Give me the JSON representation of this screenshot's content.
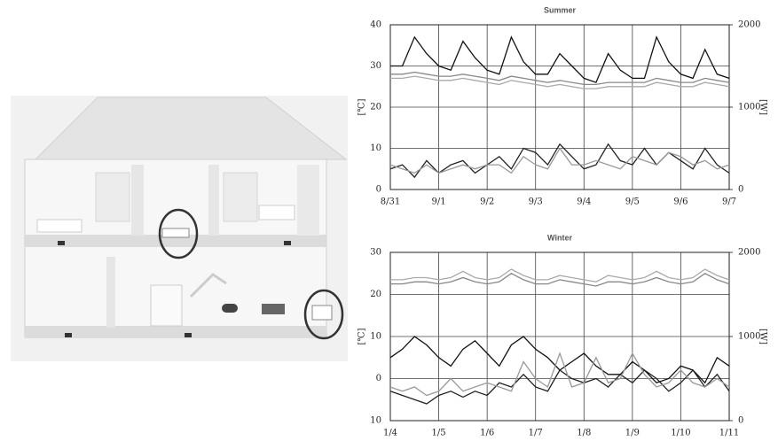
{
  "chart_data": [
    {
      "type": "line",
      "title": "Summer",
      "y_label": "[℃]",
      "y2_label": "[W]",
      "x": [
        0,
        0.25,
        0.5,
        0.75,
        1,
        1.25,
        1.5,
        1.75,
        2,
        2.25,
        2.5,
        2.75,
        3,
        3.25,
        3.5,
        3.75,
        4,
        4.25,
        4.5,
        4.75,
        5,
        5.25,
        5.5,
        5.75,
        6,
        6.25,
        6.5,
        6.75,
        7
      ],
      "xlim": [
        0,
        7
      ],
      "xticks": [
        {
          "value": 0,
          "label": "8/31"
        },
        {
          "value": 1,
          "label": "9/1"
        },
        {
          "value": 2,
          "label": "9/2"
        },
        {
          "value": 3,
          "label": "9/3"
        },
        {
          "value": 4,
          "label": "9/4"
        },
        {
          "value": 5,
          "label": "9/5"
        },
        {
          "value": 6,
          "label": "9/6"
        },
        {
          "value": 7,
          "label": "9/7"
        }
      ],
      "ylim": [
        0,
        40
      ],
      "yticks": [
        0,
        10,
        20,
        30,
        40
      ],
      "y2lim": [
        0,
        2000
      ],
      "y2ticks": [
        0,
        1000,
        2000
      ],
      "grid": true,
      "series": [
        {
          "color": "#111111",
          "values": [
            30,
            30,
            37,
            33,
            30,
            29,
            36,
            32,
            29,
            28,
            37,
            31,
            28,
            28,
            33,
            30,
            27,
            26,
            33,
            29,
            27,
            27,
            37,
            31,
            28,
            27,
            34,
            28,
            27
          ]
        },
        {
          "color": "#888888",
          "values": [
            28,
            28,
            28.5,
            28,
            27.5,
            27.5,
            28,
            27.5,
            27,
            26.5,
            27.5,
            27,
            26.5,
            26,
            26.5,
            26,
            25.5,
            25.5,
            26,
            26,
            26,
            26,
            27,
            26.5,
            26,
            26,
            27,
            26.5,
            26
          ]
        },
        {
          "color": "#aaaaaa",
          "values": [
            27,
            27,
            27.5,
            27,
            26.5,
            26.5,
            27,
            26.5,
            26,
            25.5,
            26.5,
            26,
            25.5,
            25,
            25.5,
            25,
            24.5,
            24.5,
            25,
            25,
            25,
            25,
            26,
            25.5,
            25,
            25,
            26,
            25.5,
            25
          ]
        },
        {
          "color": "#222222",
          "axis": "y2",
          "values": [
            250,
            300,
            150,
            350,
            200,
            300,
            350,
            200,
            300,
            400,
            250,
            500,
            450,
            300,
            550,
            400,
            250,
            300,
            550,
            350,
            300,
            500,
            300,
            450,
            350,
            250,
            500,
            300,
            200
          ]
        },
        {
          "color": "#999999",
          "axis": "y2",
          "values": [
            300,
            250,
            200,
            300,
            200,
            250,
            300,
            250,
            300,
            300,
            200,
            400,
            300,
            250,
            500,
            300,
            300,
            350,
            300,
            250,
            400,
            350,
            300,
            450,
            400,
            300,
            350,
            250,
            300
          ]
        }
      ]
    },
    {
      "type": "line",
      "title": "Winter",
      "y_label": "[℃]",
      "y2_label": "[W]",
      "x": [
        0,
        0.25,
        0.5,
        0.75,
        1,
        1.25,
        1.5,
        1.75,
        2,
        2.25,
        2.5,
        2.75,
        3,
        3.25,
        3.5,
        3.75,
        4,
        4.25,
        4.5,
        4.75,
        5,
        5.25,
        5.5,
        5.75,
        6,
        6.25,
        6.5,
        6.75,
        7
      ],
      "xlim": [
        0,
        7
      ],
      "xticks": [
        {
          "value": 0,
          "label": "1/4"
        },
        {
          "value": 1,
          "label": "1/5"
        },
        {
          "value": 2,
          "label": "1/6"
        },
        {
          "value": 3,
          "label": "1/7"
        },
        {
          "value": 4,
          "label": "1/8"
        },
        {
          "value": 5,
          "label": "1/9"
        },
        {
          "value": 6,
          "label": "1/10"
        },
        {
          "value": 7,
          "label": "1/11"
        }
      ],
      "ylim": [
        -10,
        30
      ],
      "yticks": [
        {
          "value": -10,
          "label": "10"
        },
        0,
        10,
        20,
        30
      ],
      "y2lim": [
        0,
        2000
      ],
      "y2ticks": [
        0,
        1000,
        2000
      ],
      "grid": true,
      "series": [
        {
          "color": "#888888",
          "values": [
            22.5,
            22.5,
            23,
            23,
            22.5,
            23,
            24,
            23,
            22.5,
            23,
            25,
            23.5,
            22.5,
            22.5,
            23.5,
            23,
            22.5,
            22,
            23,
            23,
            22.5,
            23,
            24,
            23,
            22.5,
            23,
            25,
            23.5,
            22.5
          ]
        },
        {
          "color": "#aaaaaa",
          "values": [
            23.5,
            23.5,
            24,
            24,
            23.5,
            24,
            25.5,
            24,
            23.5,
            24,
            26,
            24.5,
            23.5,
            23.5,
            24.5,
            24,
            23.5,
            23,
            24.5,
            24,
            23.5,
            24,
            25.5,
            24,
            23.5,
            24,
            26,
            24.5,
            23.5
          ]
        },
        {
          "color": "#111111",
          "values": [
            5,
            7,
            10,
            8,
            5,
            3,
            7,
            9,
            6,
            3,
            8,
            10,
            7,
            5,
            2,
            4,
            6,
            3,
            1,
            1,
            4,
            2,
            -1,
            0,
            3,
            2,
            -1,
            5,
            3
          ]
        },
        {
          "color": "#222222",
          "axis": "y2",
          "values": [
            350,
            300,
            250,
            200,
            300,
            350,
            280,
            350,
            300,
            450,
            400,
            550,
            400,
            350,
            600,
            500,
            450,
            500,
            400,
            550,
            450,
            600,
            500,
            350,
            450,
            600,
            400,
            550,
            350
          ]
        },
        {
          "color": "#999999",
          "axis": "y2",
          "values": [
            400,
            350,
            400,
            300,
            350,
            500,
            350,
            400,
            450,
            400,
            350,
            700,
            500,
            400,
            800,
            400,
            450,
            750,
            450,
            500,
            800,
            550,
            400,
            450,
            600,
            450,
            400,
            500,
            400
          ]
        }
      ]
    }
  ]
}
